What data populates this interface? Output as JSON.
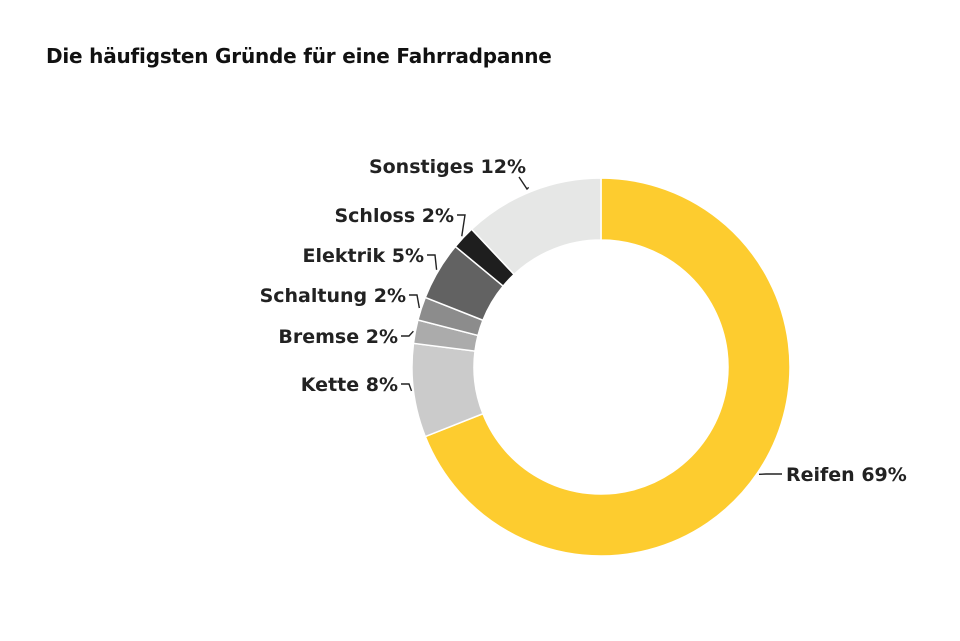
{
  "chart_data": {
    "type": "pie",
    "variant": "donut",
    "title": "Die häufigsten Gründe für eine Fahrradpanne",
    "slices": [
      {
        "label": "Reifen 69%",
        "name": "Reifen",
        "value": 69,
        "color": "#FDCC2F"
      },
      {
        "label": "Kette 8%",
        "name": "Kette",
        "value": 8,
        "color": "#CBCBCB"
      },
      {
        "label": "Bremse 2%",
        "name": "Bremse",
        "value": 2,
        "color": "#ABABAB"
      },
      {
        "label": "Schaltung 2%",
        "name": "Schaltung",
        "value": 2,
        "color": "#8C8C8C"
      },
      {
        "label": "Elektrik 5%",
        "name": "Elektrik",
        "value": 5,
        "color": "#626262"
      },
      {
        "label": "Schloss 2%",
        "name": "Schloss",
        "value": 2,
        "color": "#1E1E1E"
      },
      {
        "label": "Sonstiges 12%",
        "name": "Sonstiges",
        "value": 12,
        "color": "#E6E7E6"
      }
    ],
    "start": "12 o'clock",
    "direction": "clockwise",
    "legend": "none"
  }
}
